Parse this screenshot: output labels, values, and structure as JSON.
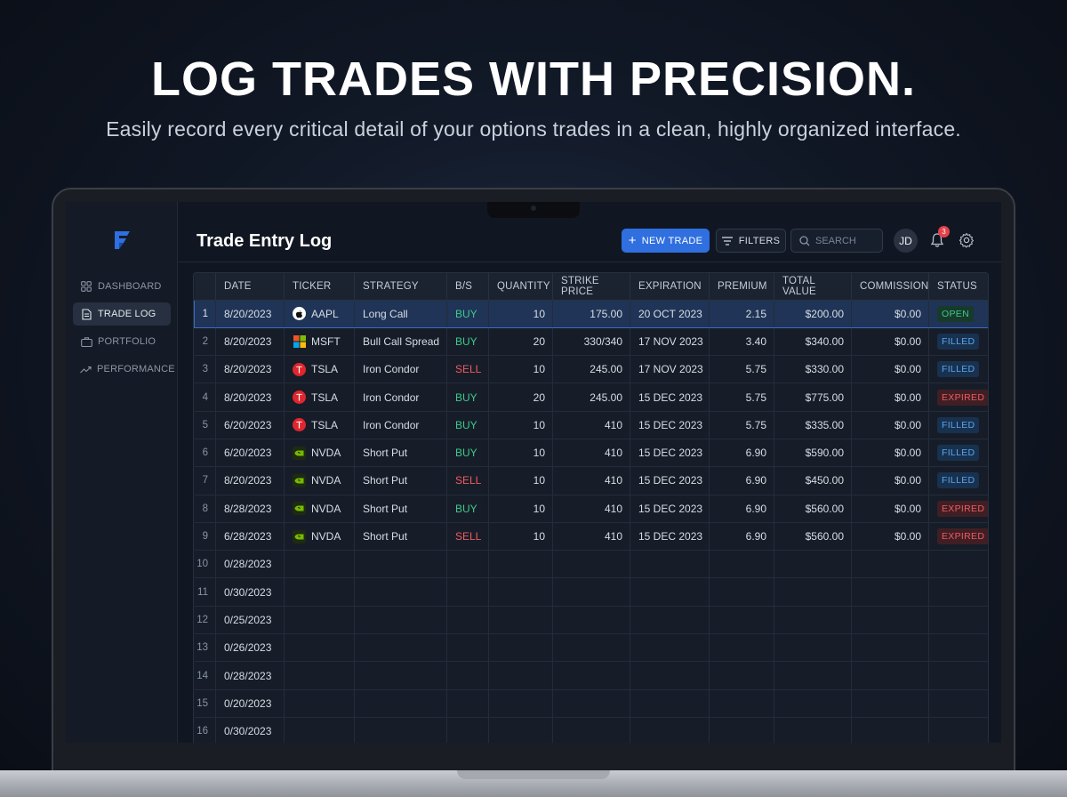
{
  "hero": {
    "headline": "LOG TRADES WITH PRECISION.",
    "subline": "Easily record every critical detail of your options trades in a clean, highly organized interface."
  },
  "sidebar": {
    "logo_icon": "brand-logo-icon",
    "items": [
      {
        "label": "DASHBOARD",
        "icon": "grid-icon",
        "active": false
      },
      {
        "label": "TRADE LOG",
        "icon": "document-icon",
        "active": true
      },
      {
        "label": "PORTFOLIO",
        "icon": "briefcase-icon",
        "active": false
      },
      {
        "label": "PERFORMANCE",
        "icon": "trend-icon",
        "active": false
      }
    ]
  },
  "header": {
    "title": "Trade Entry Log",
    "new_trade_label": "NEW TRADE",
    "filters_label": "FILTERS",
    "search_placeholder": "SEARCH",
    "avatar_initials": "JD",
    "notification_count": "3"
  },
  "colors": {
    "accent": "#2f6fe0",
    "buy": "#3ec98a",
    "sell": "#ef5a5f",
    "open": "#3ec98a",
    "filled": "#58a6f0",
    "expired": "#ef5a5f"
  },
  "table": {
    "columns": [
      "",
      "DATE",
      "TICKER",
      "STRATEGY",
      "B/S",
      "QUANTITY",
      "STRIKE PRICE",
      "EXPIRATION",
      "PREMIUM",
      "TOTAL VALUE",
      "COMMISSION",
      "STATUS"
    ],
    "rows": [
      {
        "n": "1",
        "date": "8/20/2023",
        "ticker": "AAPL",
        "icon": "apple-icon",
        "strategy": "Long Call",
        "side": "BUY",
        "qty": "10",
        "strike": "175.00",
        "exp": "20 OCT 2023",
        "premium": "2.15",
        "total": "$200.00",
        "commission": "$0.00",
        "status": "OPEN"
      },
      {
        "n": "2",
        "date": "8/20/2023",
        "ticker": "MSFT",
        "icon": "microsoft-icon",
        "strategy": "Bull Call Spread",
        "side": "BUY",
        "qty": "20",
        "strike": "330/340",
        "exp": "17 NOV 2023",
        "premium": "3.40",
        "total": "$340.00",
        "commission": "$0.00",
        "status": "FILLED"
      },
      {
        "n": "3",
        "date": "8/20/2023",
        "ticker": "TSLA",
        "icon": "tesla-icon",
        "strategy": "Iron Condor",
        "side": "SELL",
        "qty": "10",
        "strike": "245.00",
        "exp": "17 NOV 2023",
        "premium": "5.75",
        "total": "$330.00",
        "commission": "$0.00",
        "status": "FILLED"
      },
      {
        "n": "4",
        "date": "8/20/2023",
        "ticker": "TSLA",
        "icon": "tesla-icon",
        "strategy": "Iron Condor",
        "side": "BUY",
        "qty": "20",
        "strike": "245.00",
        "exp": "15 DEC 2023",
        "premium": "5.75",
        "total": "$775.00",
        "commission": "$0.00",
        "status": "EXPIRED"
      },
      {
        "n": "5",
        "date": "6/20/2023",
        "ticker": "TSLA",
        "icon": "tesla-icon",
        "strategy": "Iron Condor",
        "side": "BUY",
        "qty": "10",
        "strike": "410",
        "exp": "15 DEC 2023",
        "premium": "5.75",
        "total": "$335.00",
        "commission": "$0.00",
        "status": "FILLED"
      },
      {
        "n": "6",
        "date": "6/20/2023",
        "ticker": "NVDA",
        "icon": "nvidia-icon",
        "strategy": "Short Put",
        "side": "BUY",
        "qty": "10",
        "strike": "410",
        "exp": "15 DEC 2023",
        "premium": "6.90",
        "total": "$590.00",
        "commission": "$0.00",
        "status": "FILLED"
      },
      {
        "n": "7",
        "date": "8/20/2023",
        "ticker": "NVDA",
        "icon": "nvidia-icon",
        "strategy": "Short Put",
        "side": "SELL",
        "qty": "10",
        "strike": "410",
        "exp": "15 DEC 2023",
        "premium": "6.90",
        "total": "$450.00",
        "commission": "$0.00",
        "status": "FILLED"
      },
      {
        "n": "8",
        "date": "8/28/2023",
        "ticker": "NVDA",
        "icon": "nvidia-icon",
        "strategy": "Short Put",
        "side": "BUY",
        "qty": "10",
        "strike": "410",
        "exp": "15 DEC 2023",
        "premium": "6.90",
        "total": "$560.00",
        "commission": "$0.00",
        "status": "EXPIRED"
      },
      {
        "n": "9",
        "date": "6/28/2023",
        "ticker": "NVDA",
        "icon": "nvidia-icon",
        "strategy": "Short Put",
        "side": "SELL",
        "qty": "10",
        "strike": "410",
        "exp": "15 DEC 2023",
        "premium": "6.90",
        "total": "$560.00",
        "commission": "$0.00",
        "status": "EXPIRED"
      },
      {
        "n": "10",
        "date": "0/28/2023"
      },
      {
        "n": "11",
        "date": "0/30/2023"
      },
      {
        "n": "12",
        "date": "0/25/2023"
      },
      {
        "n": "13",
        "date": "0/26/2023"
      },
      {
        "n": "14",
        "date": "0/28/2023"
      },
      {
        "n": "15",
        "date": "0/20/2023"
      },
      {
        "n": "16",
        "date": "0/30/2023"
      }
    ]
  }
}
